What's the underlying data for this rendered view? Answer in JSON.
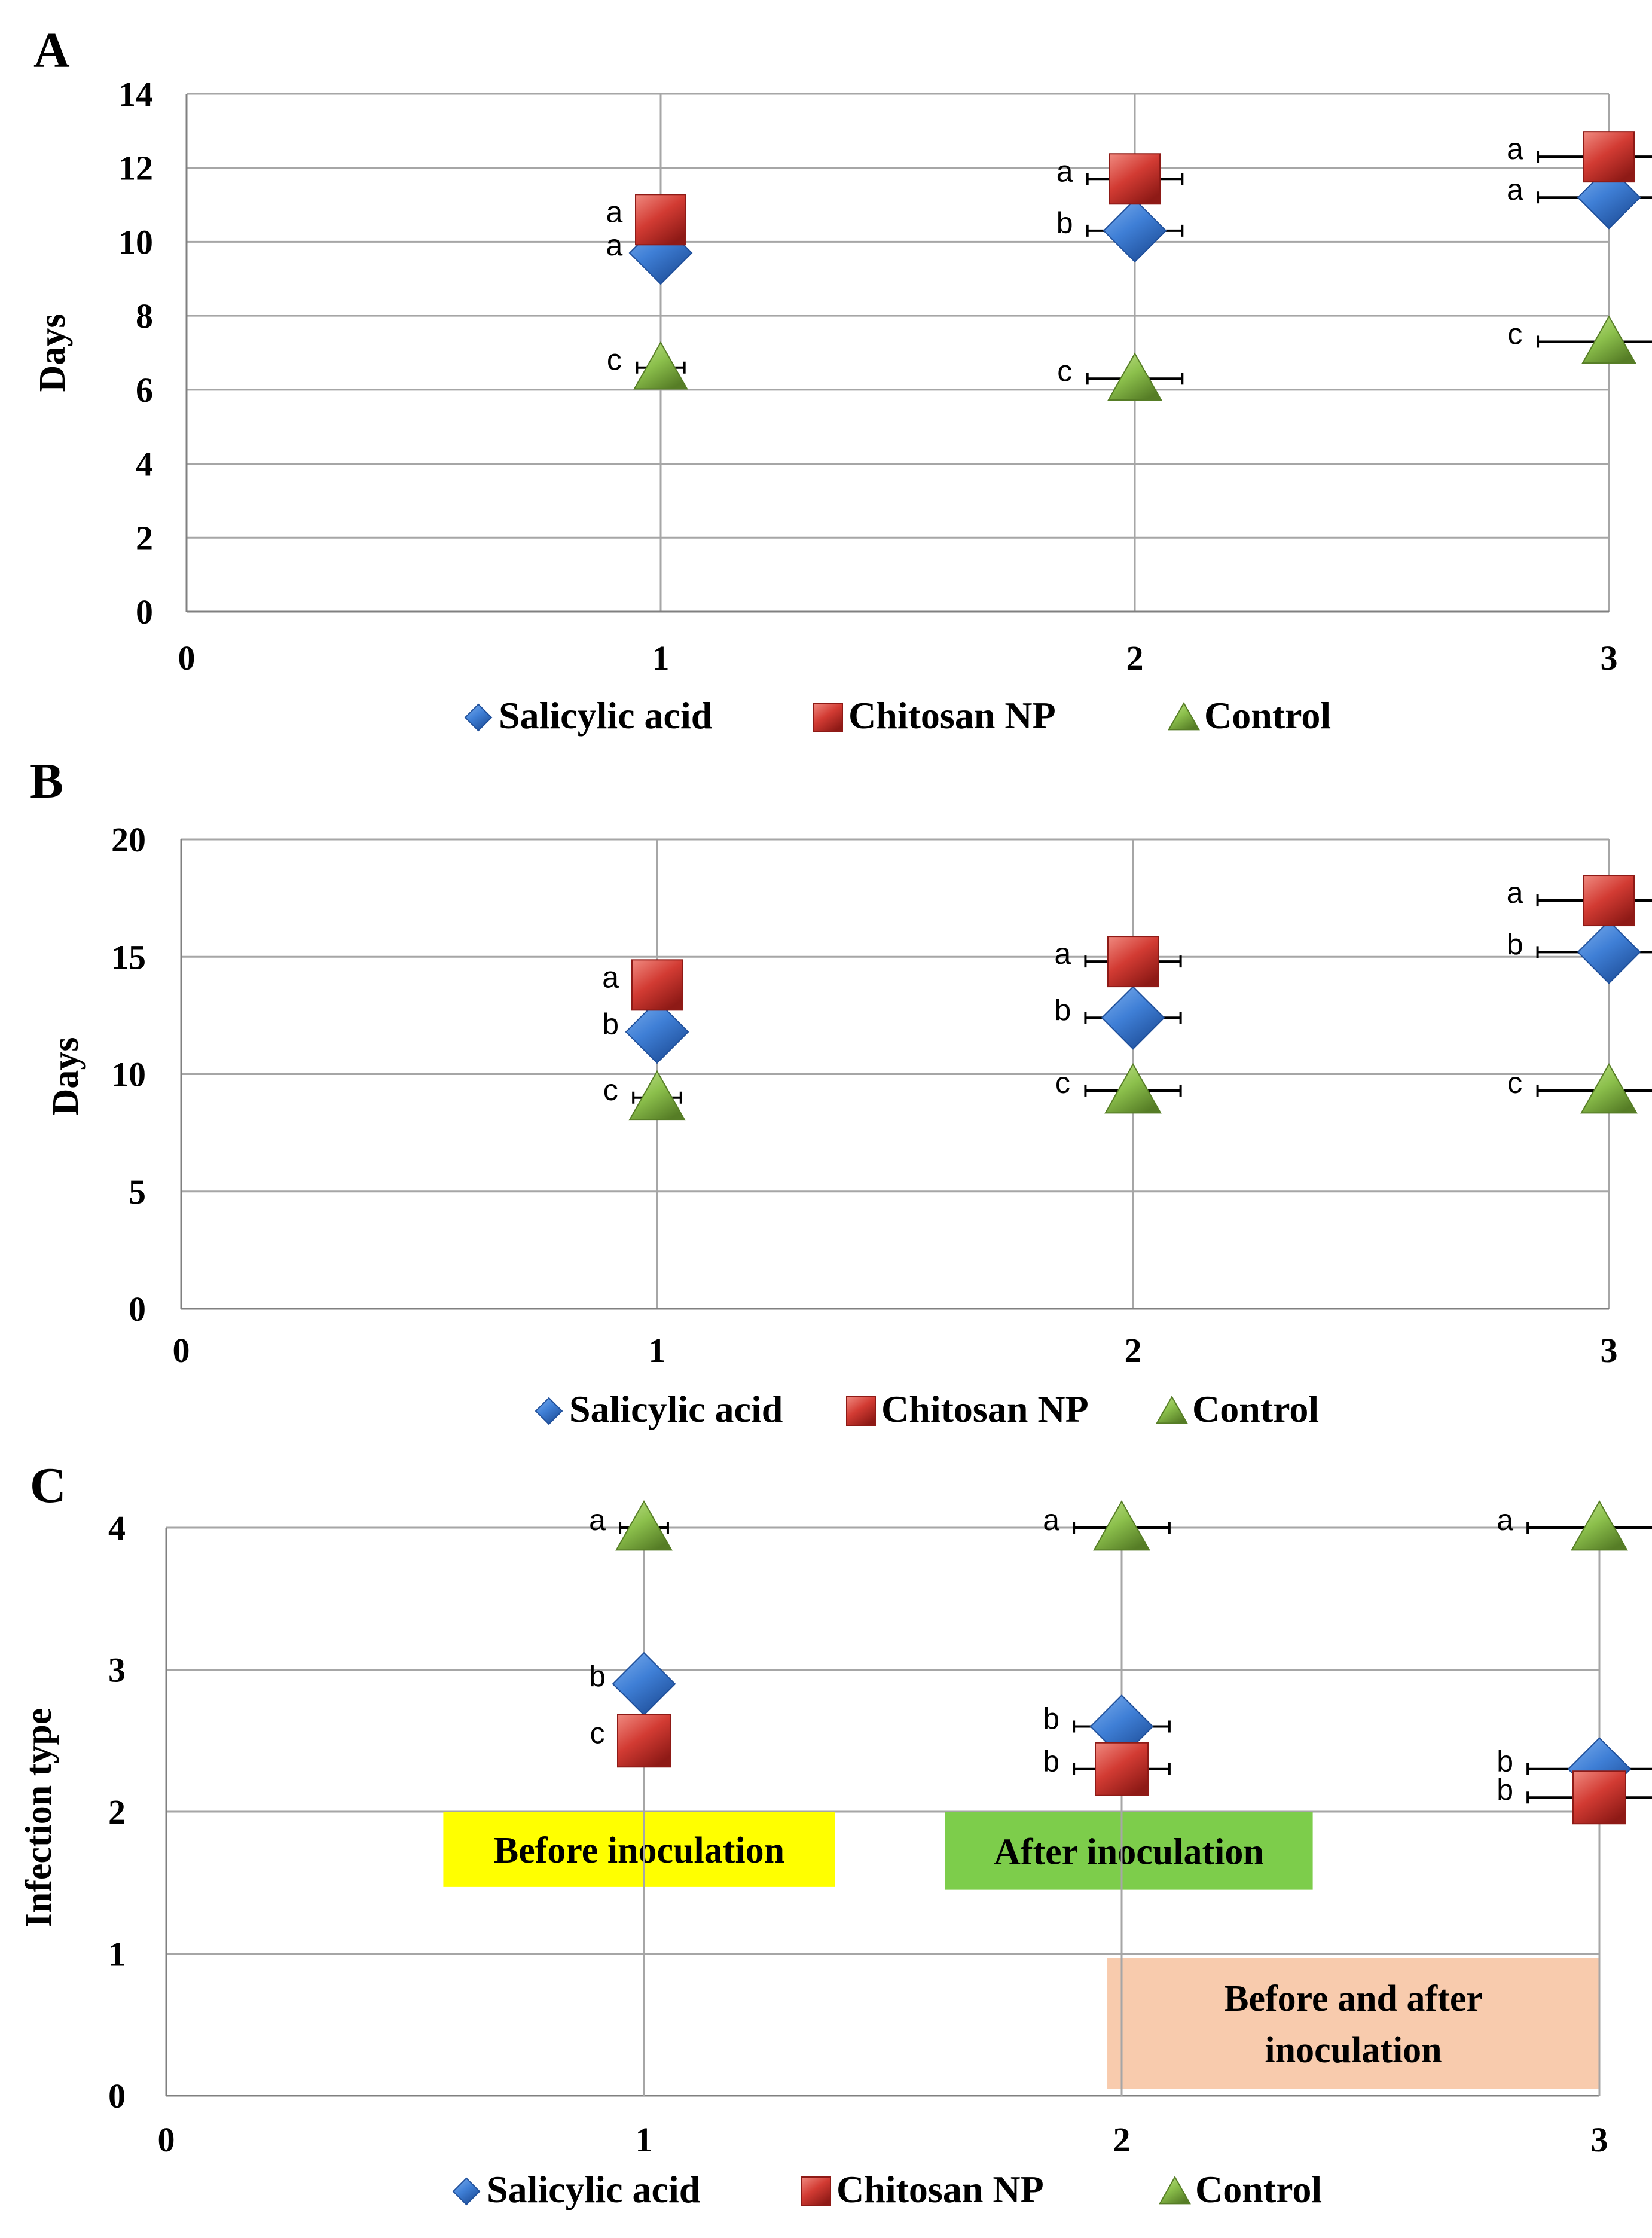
{
  "colors": {
    "salicylic": "#3f7fd6",
    "chitosan": "#d23b33",
    "control": "#8cc04c",
    "grid": "#a6a6a6",
    "axis": "#808080",
    "label_yellow": "#ffff00",
    "label_green": "#7dcd4b",
    "label_peach": "#f8cbad"
  },
  "legend_labels": [
    "Salicylic acid",
    "Chitosan NP",
    "Control"
  ],
  "chart_data": [
    {
      "type": "scatter",
      "panel": "A",
      "ylabel": "Days",
      "xlim": [
        0,
        3
      ],
      "ylim": [
        0,
        14
      ],
      "yticks": [
        0,
        2,
        4,
        6,
        8,
        10,
        12,
        14
      ],
      "xticks": [
        0,
        1,
        2,
        3
      ],
      "grid": true,
      "legend": "bottom",
      "series": [
        {
          "name": "Salicylic acid",
          "marker": "diamond",
          "x": [
            1,
            2,
            3
          ],
          "y": [
            9.7,
            10.3,
            11.2
          ],
          "xerr": [
            0.05,
            0.1,
            0.15
          ],
          "letters": [
            "a",
            "b",
            "a"
          ]
        },
        {
          "name": "Chitosan NP",
          "marker": "square",
          "x": [
            1,
            2,
            3
          ],
          "y": [
            10.6,
            11.7,
            12.3
          ],
          "xerr": [
            0,
            0.1,
            0.15
          ],
          "letters": [
            "a",
            "a",
            "a"
          ]
        },
        {
          "name": "Control",
          "marker": "triangle",
          "x": [
            1,
            2,
            3
          ],
          "y": [
            6.6,
            6.3,
            7.3
          ],
          "xerr": [
            0.05,
            0.1,
            0.15
          ],
          "letters": [
            "c",
            "c",
            "c"
          ]
        }
      ]
    },
    {
      "type": "scatter",
      "panel": "B",
      "ylabel": "Days",
      "xlim": [
        0,
        3
      ],
      "ylim": [
        0,
        20
      ],
      "yticks": [
        0,
        5,
        10,
        15,
        20
      ],
      "xticks": [
        0,
        1,
        2,
        3
      ],
      "grid": true,
      "legend": "bottom",
      "series": [
        {
          "name": "Salicylic acid",
          "marker": "diamond",
          "x": [
            1,
            2,
            3
          ],
          "y": [
            11.8,
            12.4,
            15.2
          ],
          "xerr": [
            0.05,
            0.1,
            0.15
          ],
          "letters": [
            "b",
            "b",
            "b"
          ]
        },
        {
          "name": "Chitosan NP",
          "marker": "square",
          "x": [
            1,
            2,
            3
          ],
          "y": [
            13.8,
            14.8,
            17.4
          ],
          "xerr": [
            0,
            0.1,
            0.15
          ],
          "letters": [
            "a",
            "a",
            "a"
          ]
        },
        {
          "name": "Control",
          "marker": "triangle",
          "x": [
            1,
            2,
            3
          ],
          "y": [
            9.0,
            9.3,
            9.3
          ],
          "xerr": [
            0.05,
            0.1,
            0.15
          ],
          "letters": [
            "c",
            "c",
            "c"
          ]
        }
      ]
    },
    {
      "type": "scatter",
      "panel": "C",
      "ylabel": "Infection type",
      "xlim": [
        0,
        3
      ],
      "ylim": [
        0,
        4
      ],
      "yticks": [
        0,
        1,
        2,
        3,
        4
      ],
      "xticks": [
        0,
        1,
        2,
        3
      ],
      "grid": true,
      "legend": "bottom",
      "series": [
        {
          "name": "Salicylic acid",
          "marker": "diamond",
          "x": [
            1,
            2,
            3
          ],
          "y": [
            2.9,
            2.6,
            2.3
          ],
          "xerr": [
            0.05,
            0.1,
            0.15
          ],
          "letters": [
            "b",
            "b",
            "b"
          ]
        },
        {
          "name": "Chitosan NP",
          "marker": "square",
          "x": [
            1,
            2,
            3
          ],
          "y": [
            2.5,
            2.3,
            2.1
          ],
          "xerr": [
            0,
            0.1,
            0.15
          ],
          "letters": [
            "c",
            "b",
            "b"
          ]
        },
        {
          "name": "Control",
          "marker": "triangle",
          "x": [
            1,
            2,
            3
          ],
          "y": [
            4.0,
            4.0,
            4.0
          ],
          "xerr": [
            0.05,
            0.1,
            0.15
          ],
          "letters": [
            "a",
            "a",
            "a"
          ]
        }
      ],
      "annotations": [
        {
          "text": "Before inoculation",
          "color": "label_yellow",
          "x_range": [
            0.58,
            1.4
          ],
          "y_range": [
            1.47,
            2.0
          ]
        },
        {
          "text": "After inoculation",
          "color": "label_green",
          "x_range": [
            1.63,
            2.4
          ],
          "y_range": [
            1.45,
            2.0
          ]
        },
        {
          "text": [
            "Before and after",
            "inoculation"
          ],
          "color": "label_peach",
          "x_range": [
            1.97,
            3.0
          ],
          "y_range": [
            0.05,
            0.97
          ]
        }
      ]
    }
  ]
}
